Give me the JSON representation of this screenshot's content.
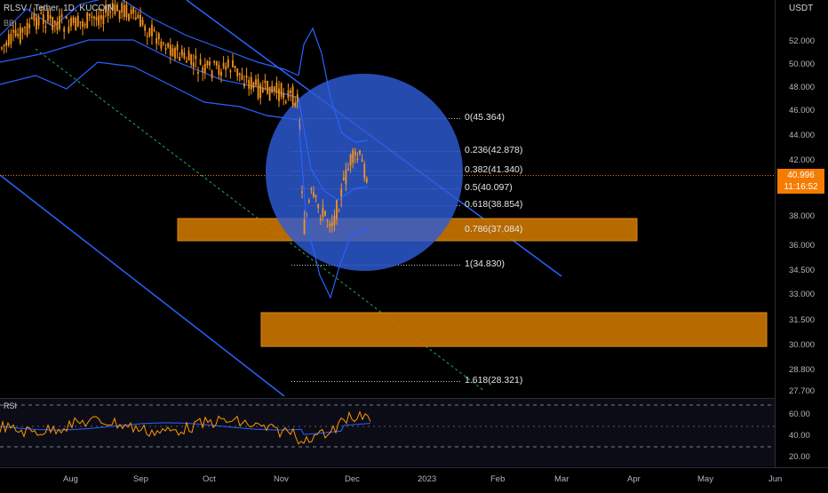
{
  "header": {
    "symbol_line": "RLSV / Tether, 1D, KUCOIN",
    "indicator": "BB"
  },
  "currency": "USDT",
  "rsi_label": "RSI",
  "last_price": {
    "value": "40.996",
    "countdown": "11:16:52"
  },
  "price_axis": [
    {
      "label": "52.000",
      "value": 52.0
    },
    {
      "label": "50.000",
      "value": 50.0
    },
    {
      "label": "48.000",
      "value": 48.0
    },
    {
      "label": "46.000",
      "value": 46.0
    },
    {
      "label": "44.000",
      "value": 44.0
    },
    {
      "label": "42.000",
      "value": 42.0
    },
    {
      "label": "38.000",
      "value": 38.0
    },
    {
      "label": "36.000",
      "value": 36.0
    },
    {
      "label": "34.500",
      "value": 34.5
    },
    {
      "label": "33.000",
      "value": 33.0
    },
    {
      "label": "31.500",
      "value": 31.5
    },
    {
      "label": "30.000",
      "value": 30.0
    },
    {
      "label": "28.800",
      "value": 28.8
    },
    {
      "label": "27.700",
      "value": 27.7
    }
  ],
  "rsi_axis": [
    "60.00",
    "40.00",
    "20.00"
  ],
  "time_axis": [
    "Aug",
    "Sep",
    "Oct",
    "Nov",
    "Dec",
    "2023",
    "Feb",
    "Mar",
    "Apr",
    "May",
    "Jun"
  ],
  "fib_levels": [
    {
      "label": "0(45.364)",
      "value": 45.364
    },
    {
      "label": "0.236(42.878)",
      "value": 42.878
    },
    {
      "label": "0.382(41.340)",
      "value": 41.34
    },
    {
      "label": "0.5(40.097)",
      "value": 40.097
    },
    {
      "label": "0.618(38.854)",
      "value": 38.854
    },
    {
      "label": "0.786(37.084)",
      "value": 37.084
    },
    {
      "label": "1(34.830)",
      "value": 34.83
    },
    {
      "label": "1.618(28.321)",
      "value": 28.321
    }
  ],
  "zones": [
    {
      "name": "upper-support-zone",
      "top": 37.6,
      "bottom": 36.6
    },
    {
      "name": "lower-support-zone",
      "top": 31.9,
      "bottom": 30.1
    }
  ],
  "colors": {
    "background": "#000000",
    "candle": "#f7931a",
    "bands": "#2962ff",
    "circle": "#2e5bd6",
    "zone": "#c77300",
    "channel": "#2962ff",
    "dashed_green": "#26a65b",
    "rsi_line": "#ff9800",
    "rsi_ma": "#2962ff",
    "last_price": "#f57c00"
  }
}
